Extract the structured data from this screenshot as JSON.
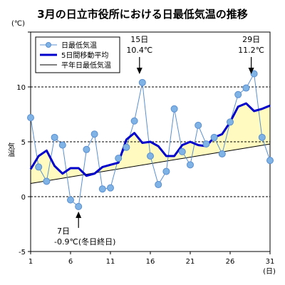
{
  "chart_data": {
    "type": "line",
    "title": "3月の日立市役所における日最低気温の推移",
    "ylabel": "気温",
    "yunit": "(℃)",
    "xunit": "(日)",
    "ylim": [
      -5,
      15
    ],
    "xlim": [
      1,
      31
    ],
    "y_ticks": [
      -5,
      0,
      5,
      10
    ],
    "x_ticks": [
      1,
      6,
      11,
      16,
      21,
      26,
      31
    ],
    "grid": "horizontal dashed at 0, 5, 10",
    "legend_position": "top-left",
    "series": [
      {
        "name": "日最低気温",
        "color": "#7fb3e6",
        "x": [
          1,
          2,
          3,
          4,
          5,
          6,
          7,
          8,
          9,
          10,
          11,
          12,
          13,
          14,
          15,
          16,
          17,
          18,
          19,
          20,
          21,
          22,
          23,
          24,
          25,
          26,
          27,
          28,
          29,
          30,
          31
        ],
        "values": [
          7.2,
          2.7,
          1.4,
          5.4,
          4.7,
          -0.3,
          -0.9,
          4.3,
          5.7,
          0.7,
          0.8,
          3.5,
          4.5,
          6.9,
          10.4,
          3.7,
          1.1,
          2.3,
          8.0,
          4.1,
          2.9,
          6.5,
          4.8,
          5.4,
          3.9,
          6.8,
          9.3,
          9.9,
          11.2,
          5.4,
          3.3
        ]
      },
      {
        "name": "5日間移動平均",
        "color": "#0000cc",
        "x": [
          1,
          2,
          3,
          4,
          5,
          6,
          7,
          8,
          9,
          10,
          11,
          12,
          13,
          14,
          15,
          16,
          17,
          18,
          19,
          20,
          21,
          22,
          23,
          24,
          25,
          26,
          27,
          28,
          29,
          30,
          31
        ],
        "values": [
          2.5,
          3.7,
          4.2,
          2.8,
          2.1,
          2.6,
          2.6,
          1.9,
          2.1,
          2.7,
          2.9,
          3.1,
          5.2,
          5.8,
          4.9,
          5.0,
          4.6,
          3.7,
          3.7,
          4.7,
          5.0,
          4.7,
          4.6,
          5.4,
          5.7,
          6.8,
          8.2,
          8.5,
          7.8,
          8.0,
          8.3
        ]
      },
      {
        "name": "平年日最低気温",
        "color": "#000000",
        "x": [
          1,
          31
        ],
        "values": [
          1.2,
          4.8
        ]
      }
    ],
    "annotations": [
      {
        "line1": "15日",
        "line2": "10.4℃",
        "x": 15,
        "y": 10.4,
        "arrow": "down"
      },
      {
        "line1": "29日",
        "line2": "11.2℃",
        "x": 29,
        "y": 11.2,
        "arrow": "down"
      },
      {
        "line1": "7日",
        "line2": "-0.9℃(冬日終日)",
        "x": 7,
        "y": -0.9,
        "arrow": "up"
      }
    ],
    "fill_color": "#fffbc0"
  }
}
